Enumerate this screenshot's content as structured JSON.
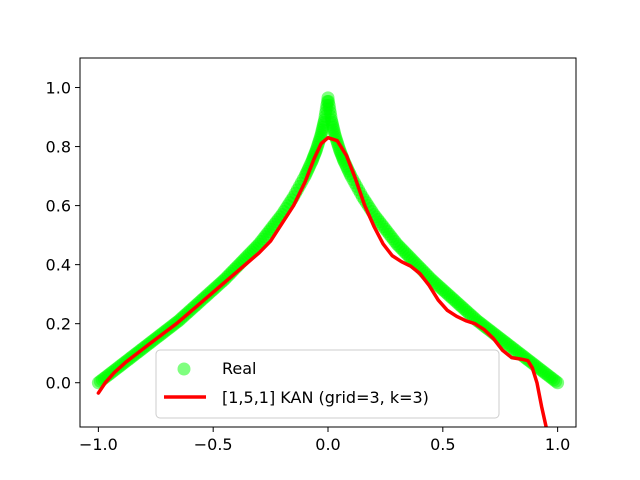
{
  "chart_data": {
    "type": "scatter",
    "title": "",
    "xlabel": "",
    "ylabel": "",
    "xlim": [
      -1.08,
      1.08
    ],
    "ylim": [
      -0.15,
      1.1
    ],
    "grid": false,
    "legend_position": "bottom-center",
    "x_ticks": [
      {
        "value": -1.0,
        "label": "−1.0"
      },
      {
        "value": -0.5,
        "label": "−0.5"
      },
      {
        "value": 0.0,
        "label": "0.0"
      },
      {
        "value": 0.5,
        "label": "0.5"
      },
      {
        "value": 1.0,
        "label": "1.0"
      }
    ],
    "y_ticks": [
      {
        "value": 0.0,
        "label": "0.0"
      },
      {
        "value": 0.2,
        "label": "0.2"
      },
      {
        "value": 0.4,
        "label": "0.4"
      },
      {
        "value": 0.6,
        "label": "0.6"
      },
      {
        "value": 0.8,
        "label": "0.8"
      },
      {
        "value": 1.0,
        "label": "1.0"
      }
    ],
    "series": [
      {
        "name": "Real",
        "kind": "scatter",
        "color": "#00ff00",
        "points": [
          [
            -1.0,
            0.0
          ],
          [
            -0.95,
            0.03
          ],
          [
            -0.9,
            0.06
          ],
          [
            -0.85,
            0.09
          ],
          [
            -0.8,
            0.12
          ],
          [
            -0.75,
            0.15
          ],
          [
            -0.7,
            0.18
          ],
          [
            -0.65,
            0.21
          ],
          [
            -0.6,
            0.245
          ],
          [
            -0.55,
            0.28
          ],
          [
            -0.5,
            0.315
          ],
          [
            -0.45,
            0.35
          ],
          [
            -0.4,
            0.39
          ],
          [
            -0.35,
            0.43
          ],
          [
            -0.3,
            0.47
          ],
          [
            -0.25,
            0.52
          ],
          [
            -0.2,
            0.57
          ],
          [
            -0.15,
            0.63
          ],
          [
            -0.1,
            0.7
          ],
          [
            -0.07,
            0.75
          ],
          [
            -0.05,
            0.79
          ],
          [
            -0.03,
            0.84
          ],
          [
            -0.015,
            0.89
          ],
          [
            0.0,
            0.965
          ],
          [
            0.015,
            0.89
          ],
          [
            0.03,
            0.84
          ],
          [
            0.05,
            0.79
          ],
          [
            0.07,
            0.75
          ],
          [
            0.1,
            0.7
          ],
          [
            0.15,
            0.63
          ],
          [
            0.2,
            0.57
          ],
          [
            0.25,
            0.52
          ],
          [
            0.3,
            0.47
          ],
          [
            0.35,
            0.43
          ],
          [
            0.4,
            0.39
          ],
          [
            0.45,
            0.35
          ],
          [
            0.5,
            0.315
          ],
          [
            0.55,
            0.28
          ],
          [
            0.6,
            0.245
          ],
          [
            0.65,
            0.21
          ],
          [
            0.7,
            0.18
          ],
          [
            0.75,
            0.15
          ],
          [
            0.8,
            0.12
          ],
          [
            0.85,
            0.09
          ],
          [
            0.9,
            0.06
          ],
          [
            0.95,
            0.03
          ],
          [
            1.0,
            0.0
          ]
        ]
      },
      {
        "name": "[1,5,1] KAN (grid=3, k=3)",
        "kind": "line",
        "color": "#ff0000",
        "points": [
          [
            -1.0,
            -0.035
          ],
          [
            -0.97,
            0.0
          ],
          [
            -0.93,
            0.035
          ],
          [
            -0.88,
            0.07
          ],
          [
            -0.83,
            0.1
          ],
          [
            -0.78,
            0.13
          ],
          [
            -0.72,
            0.165
          ],
          [
            -0.66,
            0.2
          ],
          [
            -0.6,
            0.24
          ],
          [
            -0.54,
            0.28
          ],
          [
            -0.48,
            0.32
          ],
          [
            -0.42,
            0.36
          ],
          [
            -0.36,
            0.4
          ],
          [
            -0.3,
            0.44
          ],
          [
            -0.25,
            0.48
          ],
          [
            -0.2,
            0.54
          ],
          [
            -0.15,
            0.6
          ],
          [
            -0.1,
            0.68
          ],
          [
            -0.06,
            0.76
          ],
          [
            -0.03,
            0.81
          ],
          [
            0.0,
            0.83
          ],
          [
            0.04,
            0.82
          ],
          [
            0.08,
            0.77
          ],
          [
            0.12,
            0.69
          ],
          [
            0.16,
            0.6
          ],
          [
            0.2,
            0.53
          ],
          [
            0.24,
            0.47
          ],
          [
            0.28,
            0.43
          ],
          [
            0.32,
            0.41
          ],
          [
            0.36,
            0.395
          ],
          [
            0.4,
            0.37
          ],
          [
            0.44,
            0.33
          ],
          [
            0.48,
            0.28
          ],
          [
            0.52,
            0.245
          ],
          [
            0.56,
            0.225
          ],
          [
            0.6,
            0.21
          ],
          [
            0.64,
            0.2
          ],
          [
            0.68,
            0.18
          ],
          [
            0.72,
            0.15
          ],
          [
            0.76,
            0.11
          ],
          [
            0.8,
            0.085
          ],
          [
            0.84,
            0.08
          ],
          [
            0.87,
            0.075
          ],
          [
            0.89,
            0.05
          ],
          [
            0.91,
            0.0
          ],
          [
            0.93,
            -0.08
          ],
          [
            0.95,
            -0.15
          ]
        ]
      }
    ]
  },
  "legend": {
    "real_label": "Real",
    "kan_label": "[1,5,1] KAN (grid=3, k=3)"
  }
}
